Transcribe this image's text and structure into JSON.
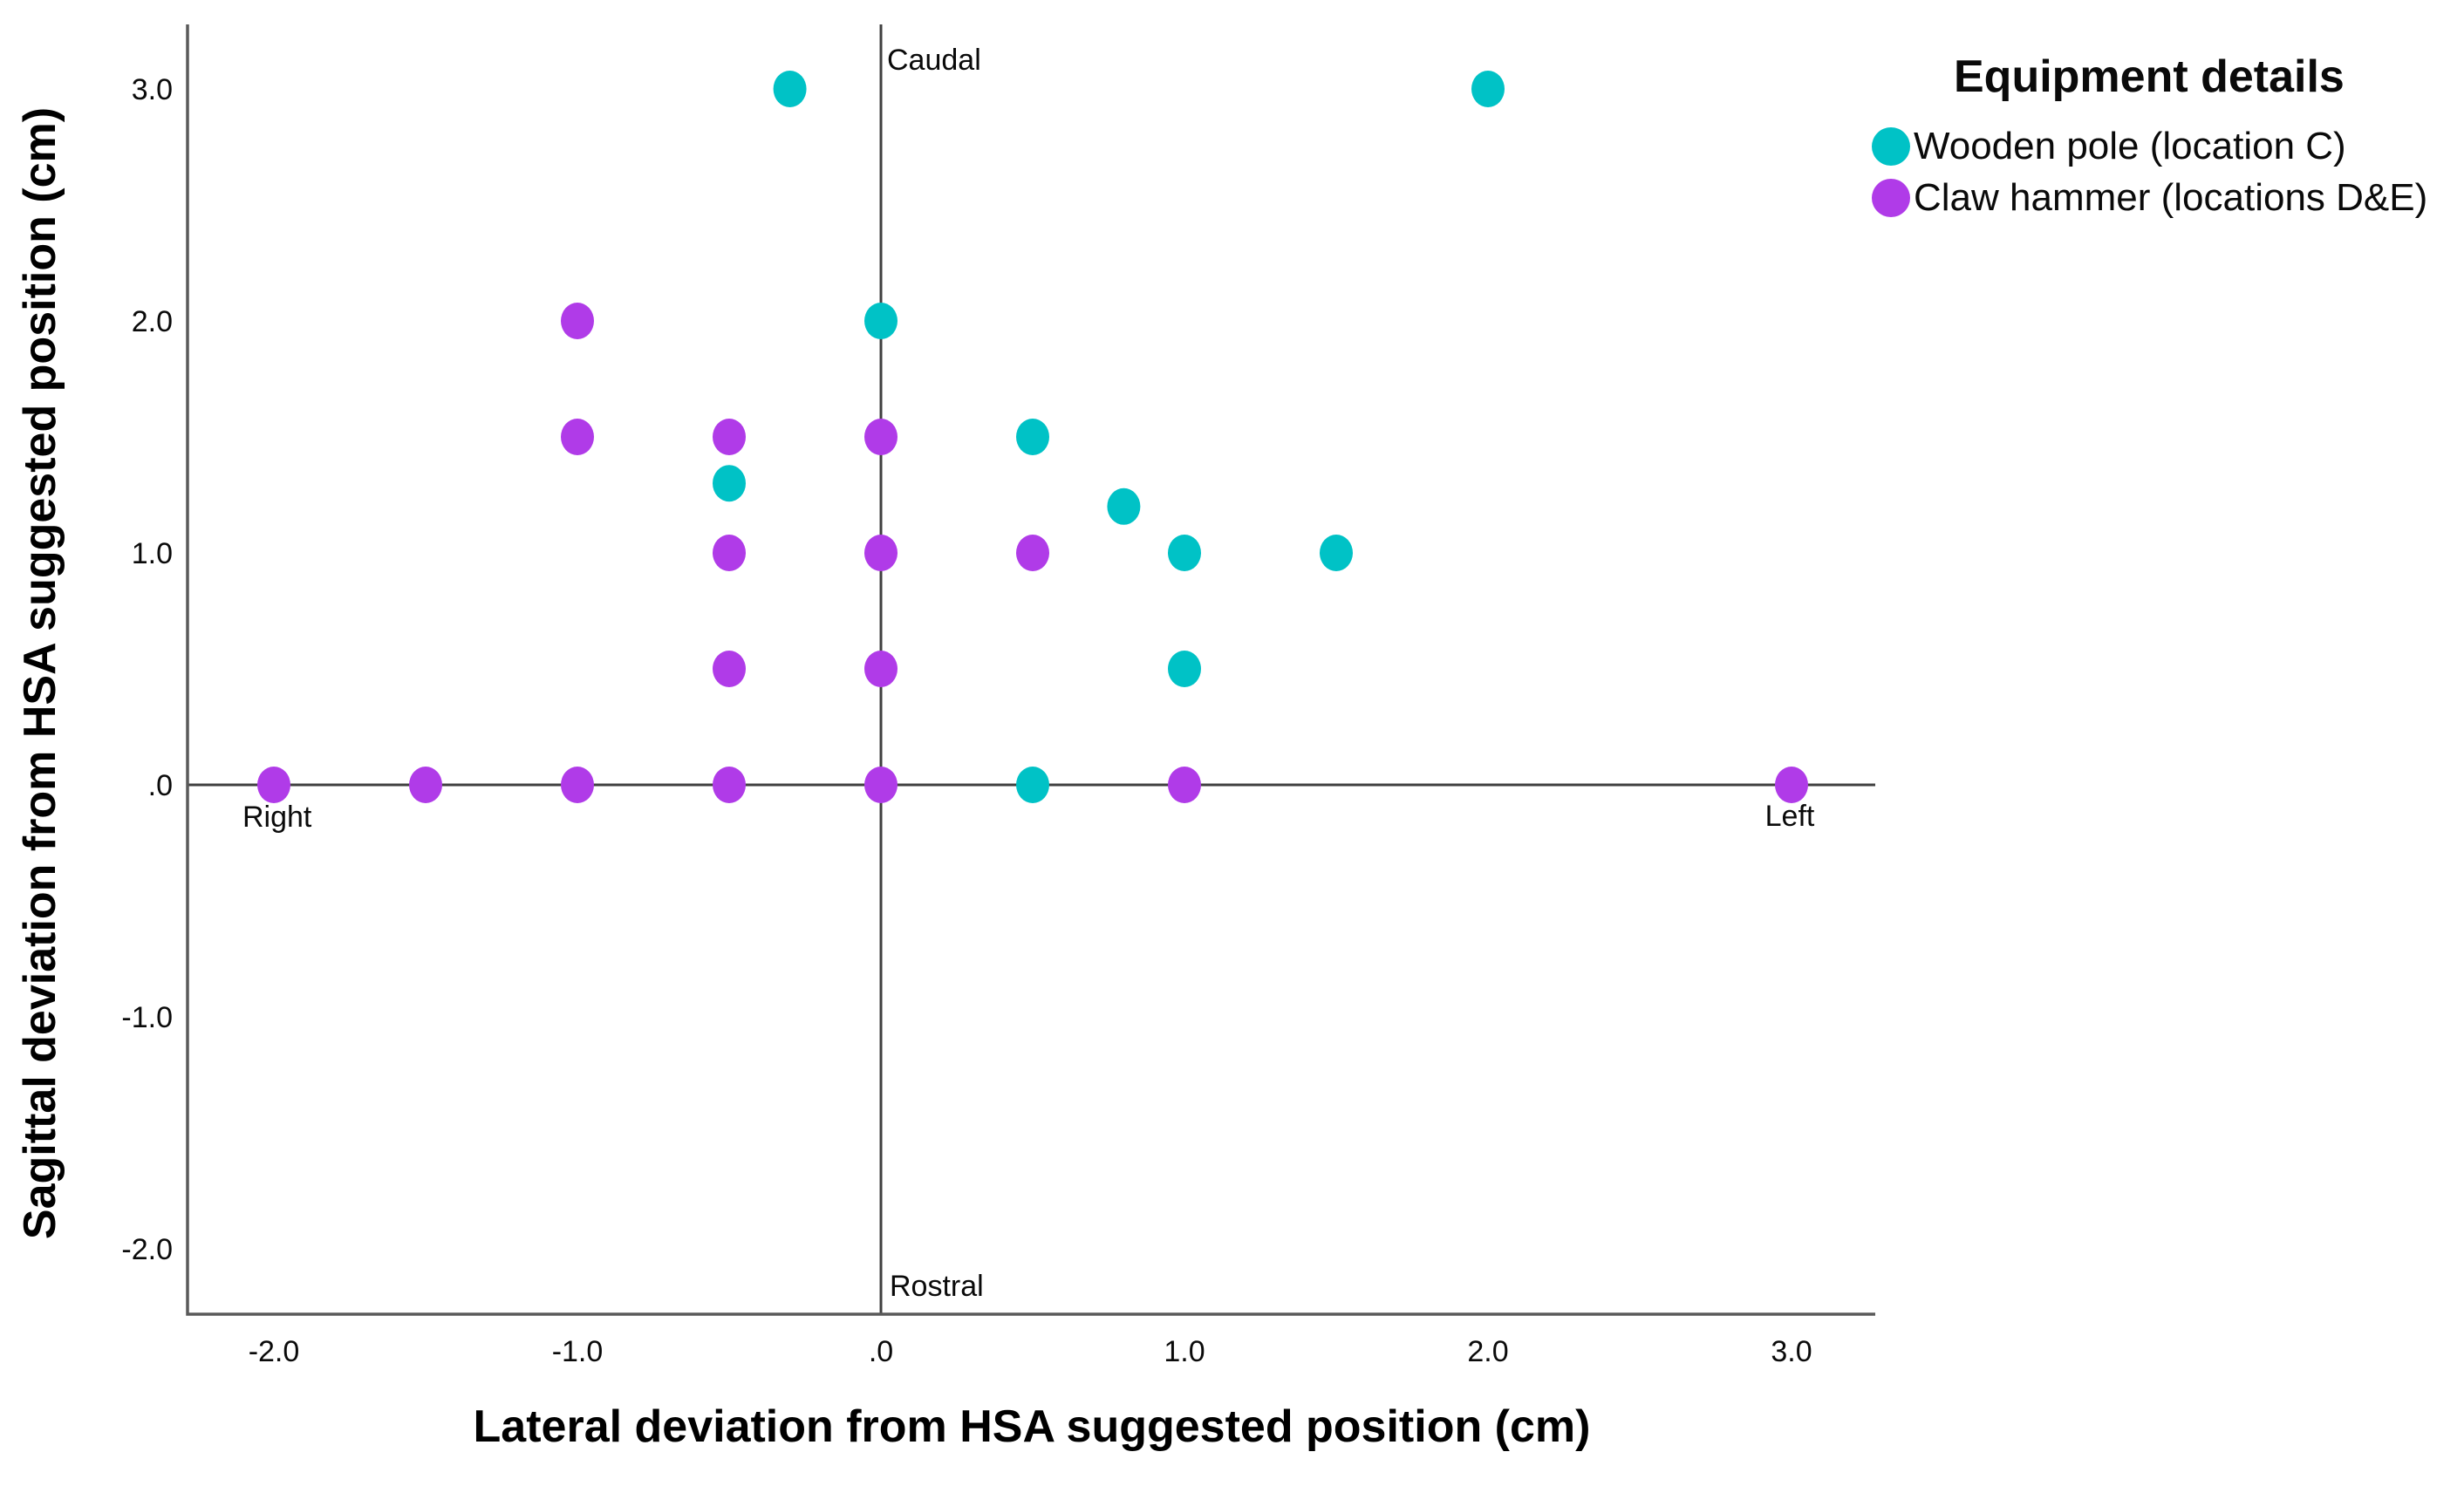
{
  "chart_data": {
    "type": "scatter",
    "title": "",
    "xlabel": "Lateral deviation from HSA suggested position (cm)",
    "ylabel": "Sagittal deviation from HSA suggested position (cm)",
    "xlim": [
      -2.3,
      3.3
    ],
    "ylim": [
      -2.3,
      3.3
    ],
    "grid": false,
    "x_tick_values": [
      -2.0,
      -1.0,
      0.0,
      1.0,
      2.0,
      3.0
    ],
    "x_tick_labels": [
      "-2.0",
      "-1.0",
      ".0",
      "1.0",
      "2.0",
      "3.0"
    ],
    "y_tick_values": [
      3.0,
      2.0,
      1.0,
      0.0,
      -1.0,
      -2.0
    ],
    "y_tick_labels": [
      "3.0",
      "2.0",
      "1.0",
      ".0",
      "-1.0",
      "-2.0"
    ],
    "reference_lines": {
      "vertical_at_x": 0.0,
      "horizontal_at_y": 0.0
    },
    "annotations": [
      {
        "id": "caudal",
        "text": "Caudal",
        "position": "top-of-vertical-reference-line"
      },
      {
        "id": "rostral",
        "text": "Rostral",
        "position": "bottom-of-vertical-reference-line"
      },
      {
        "id": "right",
        "text": "Right",
        "position": "left-end-below-horizontal-reference-line"
      },
      {
        "id": "left",
        "text": "Left",
        "position": "right-end-below-horizontal-reference-line"
      }
    ],
    "legend": {
      "title": "Equipment details",
      "position": "top-right-outside",
      "marker": "circle",
      "entries": [
        {
          "label": "Wooden pole (location C)",
          "color": "#00c2c6"
        },
        {
          "label": "Claw hammer (locations D&E)",
          "color": "#b03be8"
        }
      ]
    },
    "series": [
      {
        "name": "Wooden pole (location C)",
        "color": "#00c2c6",
        "points": [
          [
            -0.3,
            3.0
          ],
          [
            2.0,
            3.0
          ],
          [
            0.0,
            2.0
          ],
          [
            0.5,
            1.5
          ],
          [
            -0.5,
            1.3
          ],
          [
            0.8,
            1.2
          ],
          [
            1.0,
            1.0
          ],
          [
            1.5,
            1.0
          ],
          [
            1.0,
            0.5
          ],
          [
            0.5,
            0.0
          ]
        ]
      },
      {
        "name": "Claw hammer (locations D&E)",
        "color": "#b03be8",
        "points": [
          [
            -1.0,
            2.0
          ],
          [
            -1.0,
            1.5
          ],
          [
            -0.5,
            1.5
          ],
          [
            0.0,
            1.5
          ],
          [
            -0.5,
            1.0
          ],
          [
            0.0,
            1.0
          ],
          [
            0.5,
            1.0
          ],
          [
            -0.5,
            0.5
          ],
          [
            0.0,
            0.5
          ],
          [
            -2.0,
            0.0
          ],
          [
            -1.5,
            0.0
          ],
          [
            -1.0,
            0.0
          ],
          [
            -0.5,
            0.0
          ],
          [
            0.0,
            0.0
          ],
          [
            1.0,
            0.0
          ],
          [
            3.0,
            0.0
          ]
        ]
      }
    ],
    "colors": {
      "frame_line": "#5a5a5a",
      "reference_line": "#3f3f3f",
      "text": "#0a0a0a",
      "background": "#ffffff"
    }
  }
}
